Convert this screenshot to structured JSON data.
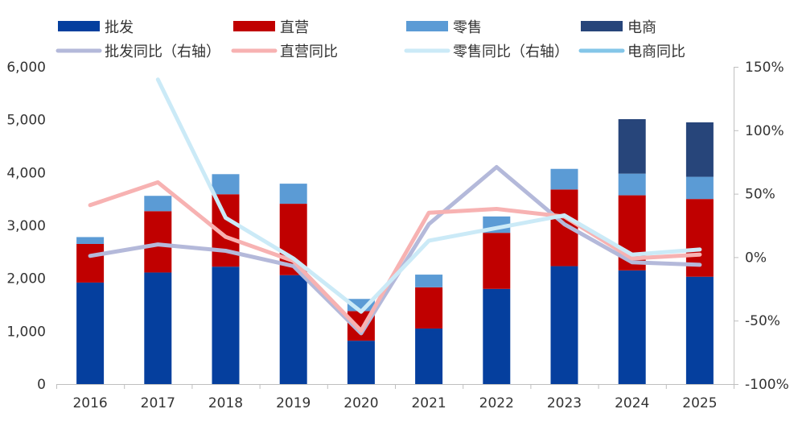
{
  "chart_data": {
    "type": "bar",
    "stacked": true,
    "categories": [
      "2016",
      "2017",
      "2018",
      "2019",
      "2020",
      "2021",
      "2022",
      "2023",
      "2024",
      "2025"
    ],
    "ylim": [
      0,
      6000
    ],
    "y_ticks": [
      "0",
      "1,000",
      "2,000",
      "3,000",
      "4,000",
      "5,000",
      "6,000"
    ],
    "y2lim": [
      -100,
      150
    ],
    "y2_ticks": [
      "-100%",
      "-50%",
      "0%",
      "50%",
      "100%",
      "150%"
    ],
    "series": [
      {
        "name": "批发",
        "type": "bar",
        "axis": "left",
        "color": "#053F9E",
        "values": [
          1920,
          2110,
          2220,
          2060,
          820,
          1050,
          1800,
          2230,
          2150,
          2030
        ]
      },
      {
        "name": "直营",
        "type": "bar",
        "axis": "left",
        "color": "#C00000",
        "values": [
          730,
          1160,
          1370,
          1350,
          560,
          780,
          1060,
          1450,
          1420,
          1470
        ]
      },
      {
        "name": "零售",
        "type": "bar",
        "axis": "left",
        "color": "#5B9BD5",
        "values": [
          130,
          290,
          380,
          380,
          230,
          240,
          310,
          390,
          410,
          420
        ]
      },
      {
        "name": "电商",
        "type": "bar",
        "axis": "left",
        "color": "#27457A",
        "values": [
          0,
          0,
          0,
          0,
          0,
          0,
          0,
          0,
          1030,
          1030
        ]
      },
      {
        "name": "批发同比（右轴）",
        "type": "line",
        "axis": "right",
        "color": "#B4B9DA",
        "values": [
          1,
          10,
          5,
          -7,
          -60,
          26,
          71,
          26,
          -4,
          -6
        ]
      },
      {
        "name": "直营同比",
        "type": "line",
        "axis": "right",
        "color": "#F7B2B2",
        "values": [
          41,
          59,
          16,
          -3,
          -58,
          35,
          38,
          32,
          -1,
          2
        ]
      },
      {
        "name": "零售同比（右轴）",
        "type": "line",
        "axis": "right",
        "color": "#CBEAF7",
        "values": [
          null,
          140,
          31,
          -1,
          -43,
          13,
          23,
          33,
          2,
          6
        ]
      },
      {
        "name": "电商同比",
        "type": "line",
        "axis": "right",
        "color": "#84C6E8",
        "values": [
          null,
          null,
          null,
          null,
          null,
          null,
          null,
          null,
          null,
          null
        ]
      }
    ]
  }
}
